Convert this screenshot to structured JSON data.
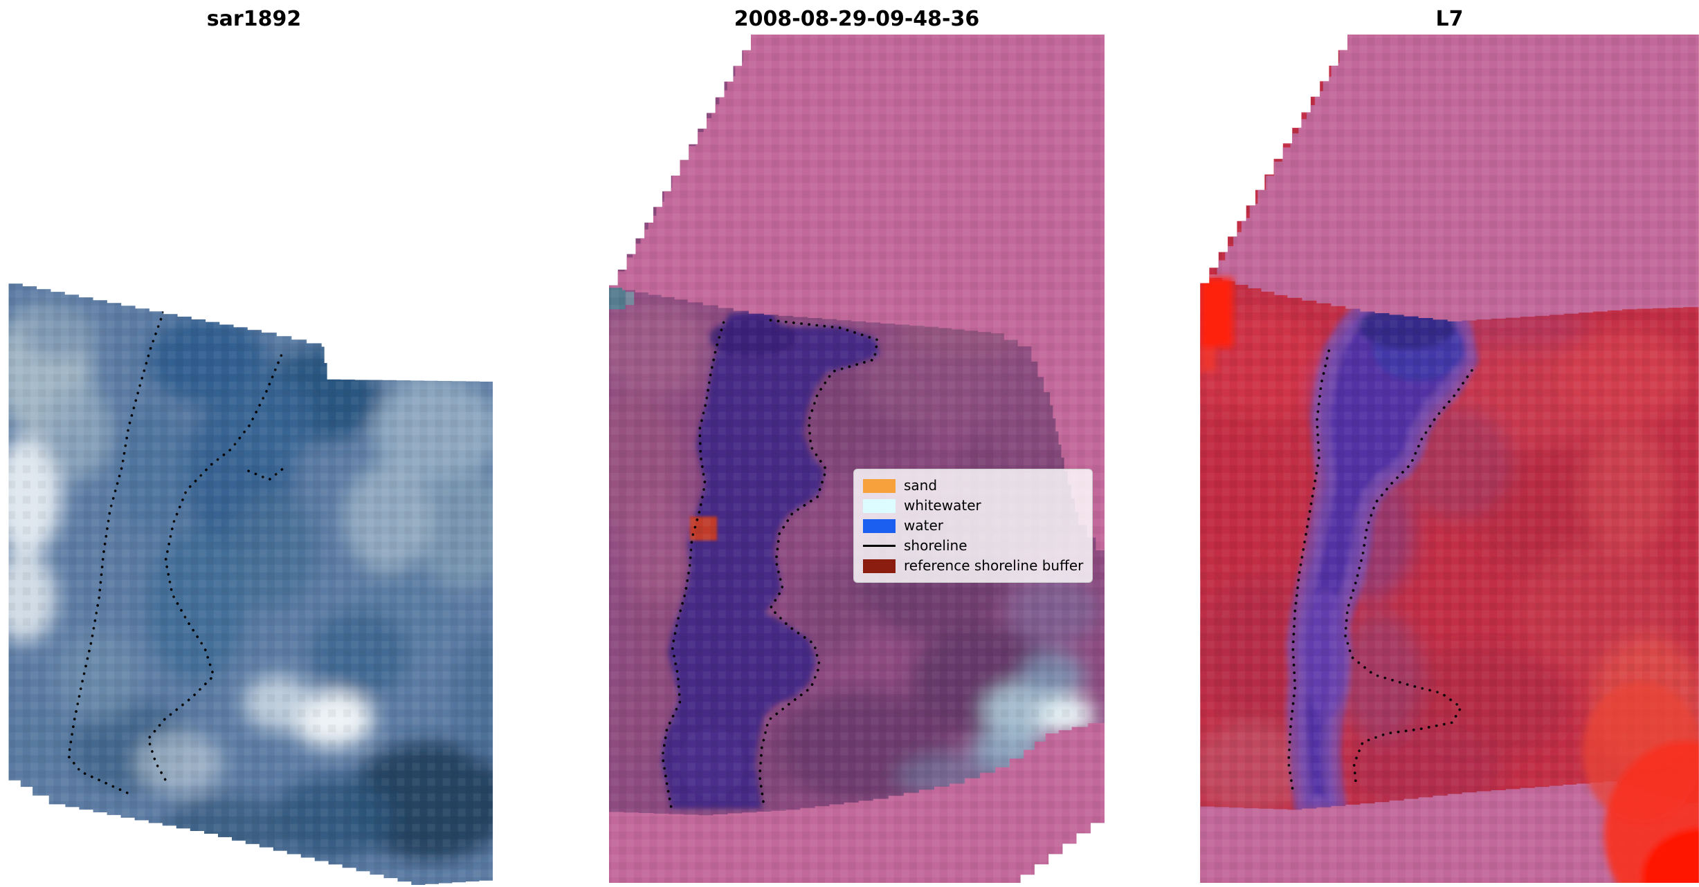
{
  "figure": {
    "background": "#ffffff",
    "panels": [
      {
        "title": "sar1892"
      },
      {
        "title": "2008-08-29-09-48-36"
      },
      {
        "title": "L7"
      }
    ],
    "legend": {
      "items": [
        {
          "label": "sand",
          "swatch": "patch",
          "color": "#f7a13d"
        },
        {
          "label": "whitewater",
          "swatch": "patch",
          "color": "#dcfcff"
        },
        {
          "label": "water",
          "swatch": "patch",
          "color": "#1a5ff0"
        },
        {
          "label": "shoreline",
          "swatch": "line",
          "color": "#000000"
        },
        {
          "label": "reference shoreline buffer",
          "swatch": "patch",
          "color": "#8b1d10"
        }
      ]
    },
    "palette": {
      "nodata_pink": "#c2689a",
      "water_overlay_purple": "#472a86",
      "sar_base_blue": "#5d7ca4",
      "l7_base_red": "#c22f46",
      "title_color": "#000000"
    }
  }
}
